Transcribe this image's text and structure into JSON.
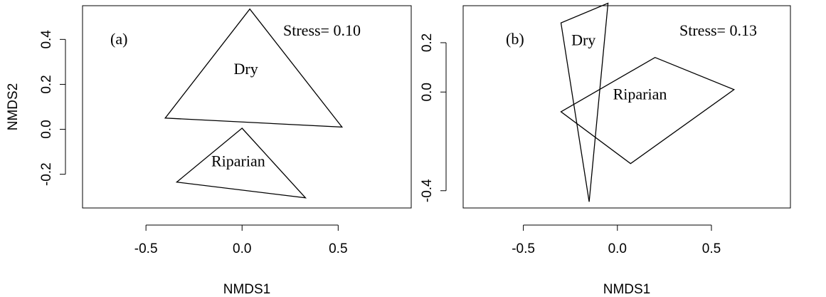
{
  "chart_data": [
    {
      "type": "scatter",
      "panel_label": "(a)",
      "annotation": "Stress= 0.10",
      "xlabel": "NMDS1",
      "ylabel": "NMDS2",
      "xlim": [
        -0.83,
        0.88
      ],
      "ylim": [
        -0.35,
        0.55
      ],
      "xticks": [
        -0.5,
        0.0,
        0.5
      ],
      "xtick_labels": [
        "-0.5",
        "0.0",
        "0.5"
      ],
      "yticks": [
        -0.2,
        0.0,
        0.2,
        0.4
      ],
      "ytick_labels": [
        "-0.2",
        "0.0",
        "0.2",
        "0.4"
      ],
      "series": [
        {
          "name": "Dry",
          "hull": [
            [
              0.04,
              0.535
            ],
            [
              0.52,
              0.01
            ],
            [
              -0.4,
              0.05
            ]
          ],
          "label_at": [
            0.02,
            0.245
          ]
        },
        {
          "name": "Riparian",
          "hull": [
            [
              0.0,
              0.005
            ],
            [
              0.33,
              -0.305
            ],
            [
              -0.34,
              -0.235
            ]
          ],
          "label_at": [
            -0.02,
            -0.165
          ]
        }
      ]
    },
    {
      "type": "scatter",
      "panel_label": "(b)",
      "annotation": "Stress= 0.13",
      "xlabel": "NMDS1",
      "ylabel": "",
      "xlim": [
        -0.82,
        0.92
      ],
      "ylim": [
        -0.47,
        0.35
      ],
      "xticks": [
        -0.5,
        0.0,
        0.5
      ],
      "xtick_labels": [
        "-0.5",
        "0.0",
        "0.5"
      ],
      "yticks": [
        -0.4,
        0.0,
        0.2
      ],
      "ytick_labels": [
        "-0.4",
        "0.0",
        "0.2"
      ],
      "series": [
        {
          "name": "Dry",
          "hull": [
            [
              -0.05,
              0.36
            ],
            [
              -0.15,
              -0.445
            ],
            [
              -0.3,
              0.28
            ]
          ],
          "label_at": [
            -0.18,
            0.19
          ]
        },
        {
          "name": "Riparian",
          "hull": [
            [
              0.2,
              0.14
            ],
            [
              0.62,
              0.01
            ],
            [
              0.07,
              -0.29
            ],
            [
              -0.3,
              -0.08
            ]
          ],
          "label_at": [
            0.12,
            -0.03
          ]
        }
      ]
    }
  ]
}
